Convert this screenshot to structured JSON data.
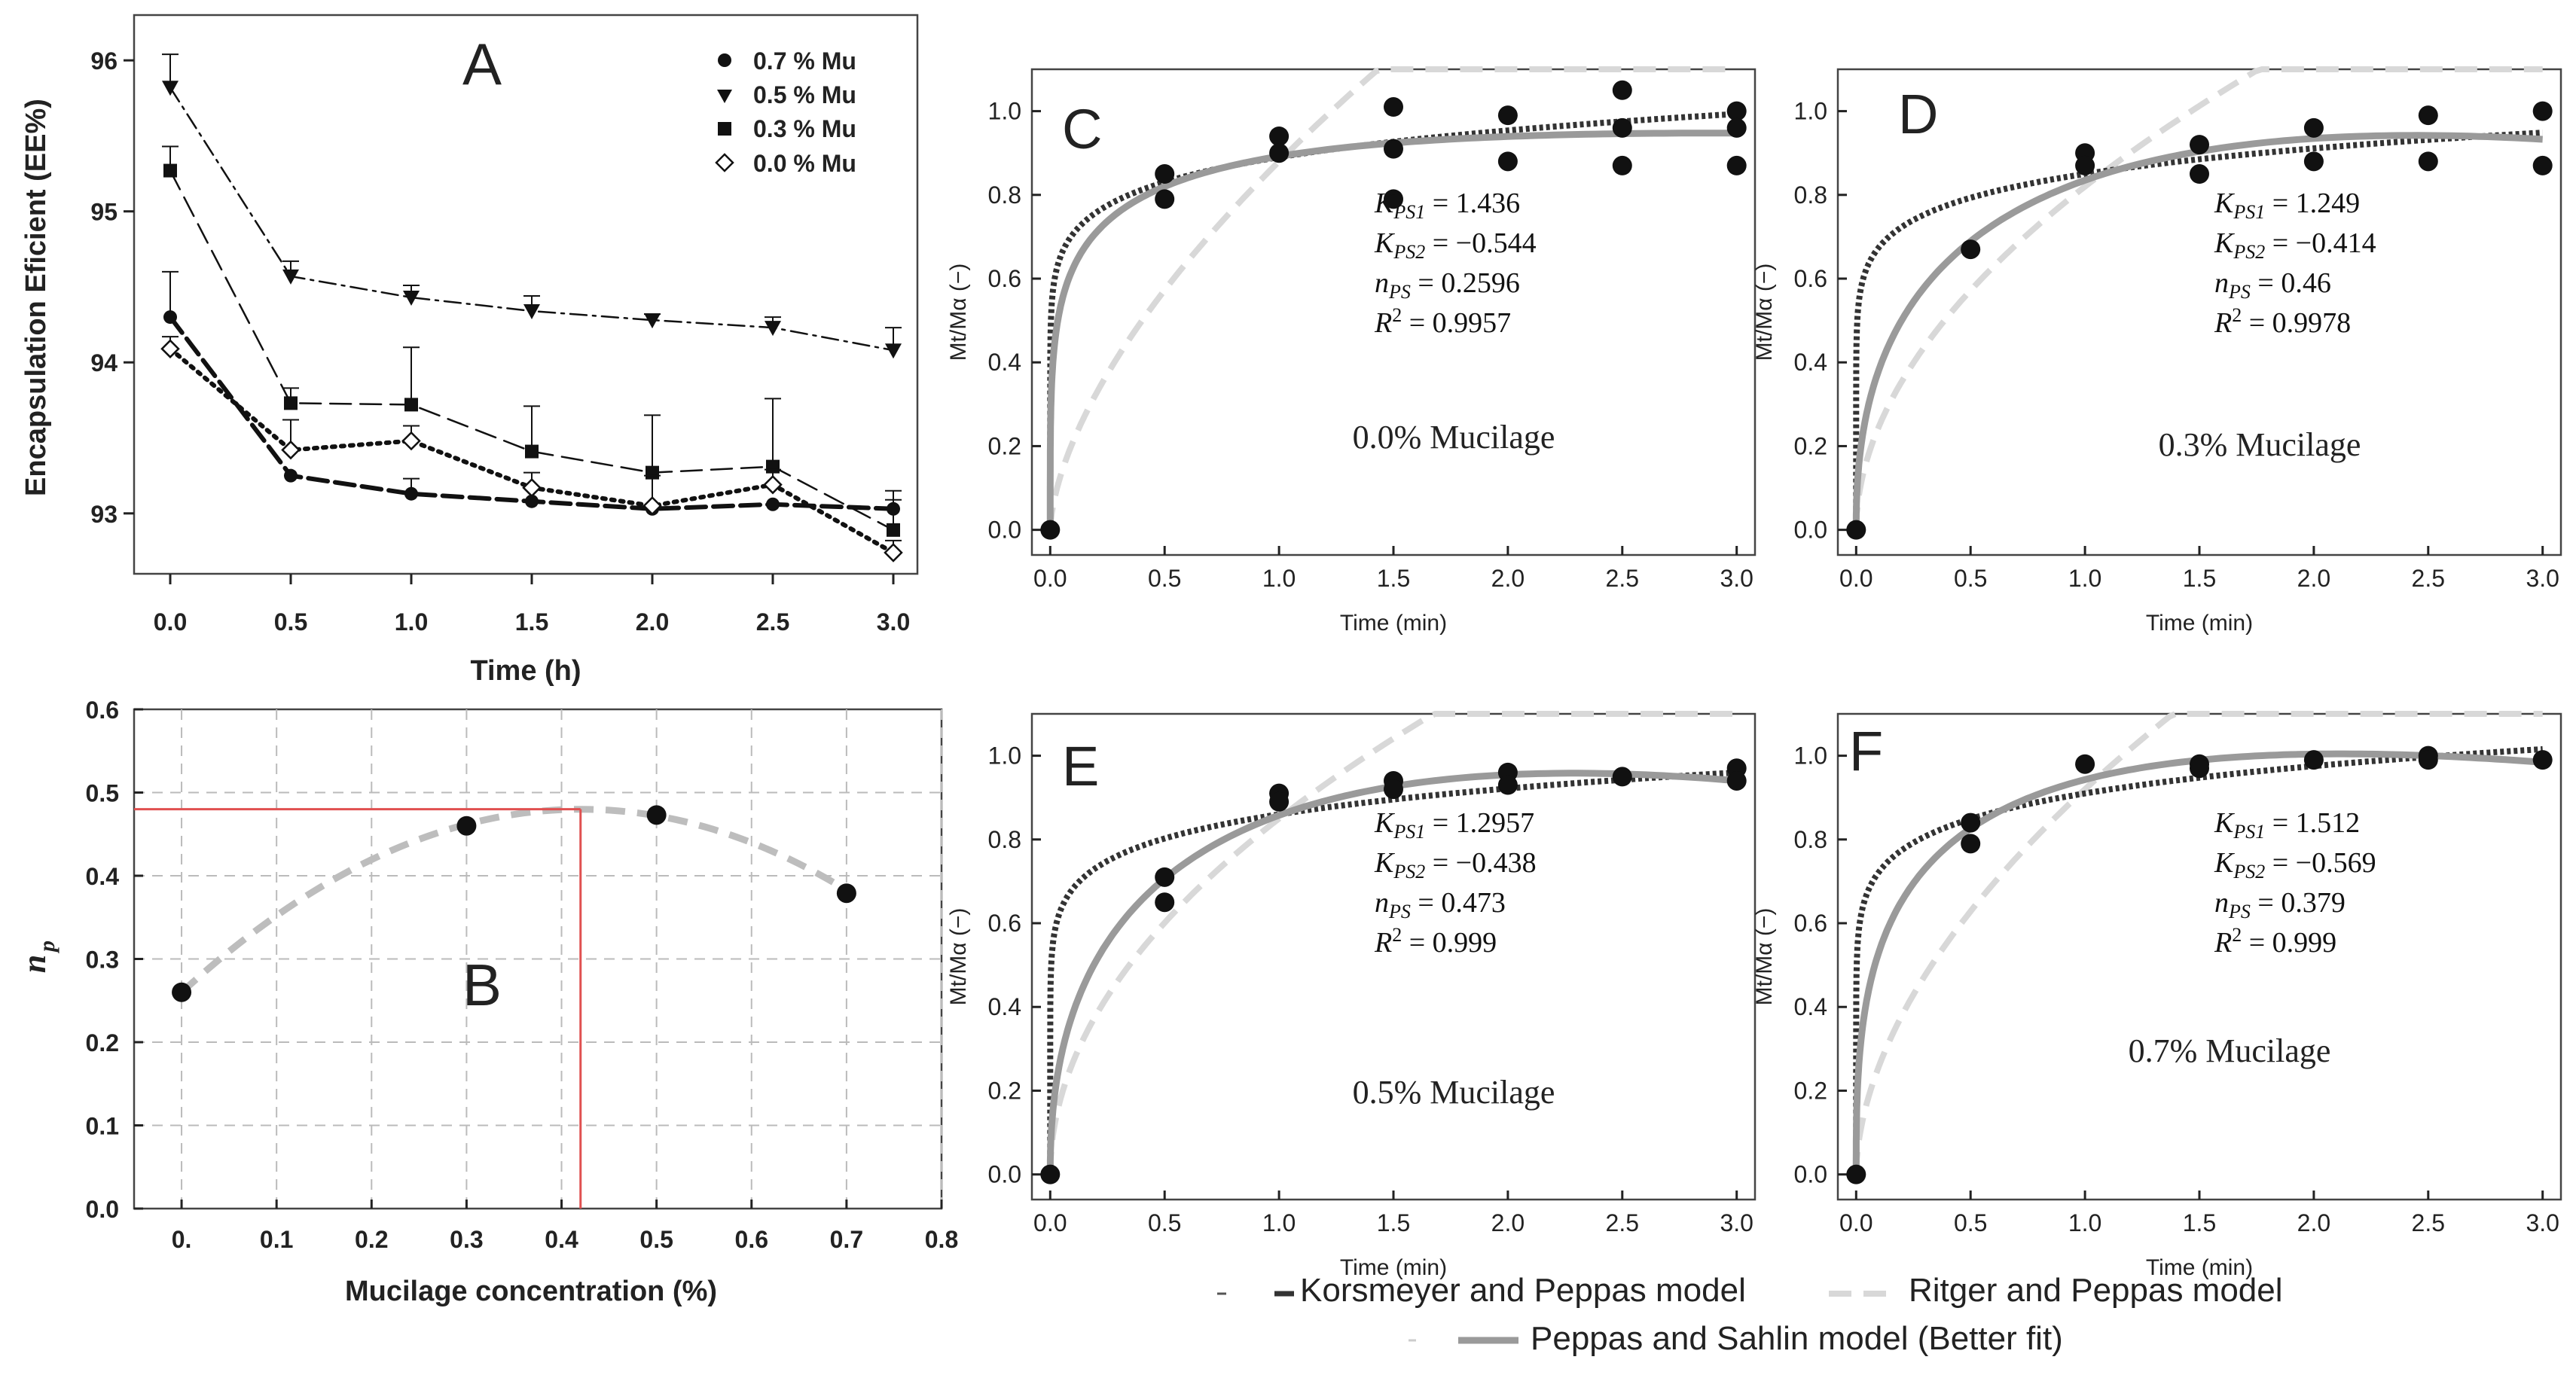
{
  "chart_data": [
    {
      "panel": "A",
      "type": "line",
      "panel_label": "A",
      "xlabel": "Time (h)",
      "ylabel": "Encapsulation Eficient (EE%)",
      "xlim": [
        -0.15,
        3.1
      ],
      "ylim": [
        92.6,
        96.3
      ],
      "xticks": [
        "0.0",
        "0.5",
        "1.0",
        "1.5",
        "2.0",
        "2.5",
        "3.0"
      ],
      "yticks": [
        "93",
        "94",
        "95",
        "96"
      ],
      "x": [
        0,
        0.5,
        1,
        1.5,
        2,
        2.5,
        3
      ],
      "series": [
        {
          "name": "0.7 % Mu",
          "marker": "circle",
          "dash": "long-dash",
          "values": [
            94.3,
            93.25,
            93.13,
            93.08,
            93.03,
            93.06,
            93.03
          ],
          "errors": [
            0.3,
            0.0,
            0.1,
            0.0,
            0.0,
            0.0,
            0.12
          ]
        },
        {
          "name": "0.5 % Mu",
          "marker": "triangle-down",
          "dash": "dash-dot",
          "values": [
            95.82,
            94.57,
            94.43,
            94.34,
            94.28,
            94.23,
            94.08
          ],
          "errors": [
            0.22,
            0.1,
            0.08,
            0.1,
            0.04,
            0.07,
            0.15
          ]
        },
        {
          "name": "0.3 % Mu",
          "marker": "square",
          "dash": "dash",
          "values": [
            95.27,
            93.73,
            93.72,
            93.41,
            93.27,
            93.31,
            92.89
          ],
          "errors": [
            0.16,
            0.1,
            0.38,
            0.3,
            0.38,
            0.45,
            0.2
          ]
        },
        {
          "name": "0.0 % Mu",
          "marker": "diamond-open",
          "dash": "dot",
          "values": [
            94.09,
            93.42,
            93.48,
            93.17,
            93.05,
            93.19,
            92.74
          ],
          "errors": [
            0.08,
            0.2,
            0.1,
            0.1,
            0.2,
            0.1,
            0.08
          ]
        }
      ]
    },
    {
      "panel": "B",
      "type": "scatter",
      "panel_label": "B",
      "xlabel": "Mucilage concentration (%)",
      "ylabel": "n",
      "ylabel_sub": "p",
      "xlim": [
        -0.05,
        0.8
      ],
      "ylim": [
        0.0,
        0.6
      ],
      "xticks": [
        "0.",
        "0.1",
        "0.2",
        "0.3",
        "0.4",
        "0.5",
        "0.6",
        "0.7",
        "0.8"
      ],
      "yticks": [
        "0.0",
        "0.1",
        "0.2",
        "0.3",
        "0.4",
        "0.5",
        "0.6"
      ],
      "points": {
        "x": [
          0.0,
          0.3,
          0.5,
          0.7
        ],
        "y": [
          0.26,
          0.46,
          0.473,
          0.379
        ]
      },
      "fit": {
        "type": "quadratic",
        "a": 0.2598,
        "b": 1.0469,
        "c": -1.2448
      },
      "optimum": {
        "x": 0.42,
        "y": 0.48
      }
    },
    {
      "panel": "C",
      "type": "scatter",
      "panel_label": "C",
      "annotation": "0.0% Mucilage",
      "params": {
        "K_PS1": "1.436",
        "K_PS2": "−0.544",
        "n_PS": "0.2596",
        "R2": "0.9957"
      },
      "points": {
        "x": [
          0,
          0.5,
          0.5,
          1,
          1,
          1.5,
          1.5,
          1.5,
          2,
          2,
          2.5,
          2.5,
          2.5,
          3,
          3,
          3
        ],
        "y": [
          0,
          0.85,
          0.79,
          0.94,
          0.9,
          1.01,
          0.79,
          0.91,
          0.99,
          0.88,
          1.05,
          0.96,
          0.87,
          1.0,
          0.96,
          0.87
        ]
      }
    },
    {
      "panel": "D",
      "type": "scatter",
      "panel_label": "D",
      "annotation": "0.3% Mucilage",
      "params": {
        "K_PS1": "1.249",
        "K_PS2": "−0.414",
        "n_PS": "0.46",
        "R2": "0.9978"
      },
      "points": {
        "x": [
          0,
          0.5,
          1,
          1,
          1.5,
          1.5,
          2,
          2,
          2.5,
          2.5,
          3,
          3
        ],
        "y": [
          0,
          0.67,
          0.9,
          0.87,
          0.92,
          0.85,
          0.96,
          0.88,
          0.99,
          0.88,
          1.0,
          0.87
        ]
      }
    },
    {
      "panel": "E",
      "type": "scatter",
      "panel_label": "E",
      "annotation": "0.5% Mucilage",
      "params": {
        "K_PS1": "1.2957",
        "K_PS2": "−0.438",
        "n_PS": "0.473",
        "R2": "0.999"
      },
      "points": {
        "x": [
          0,
          0.5,
          0.5,
          1,
          1,
          1.5,
          1.5,
          2,
          2,
          2.5,
          3,
          3
        ],
        "y": [
          0,
          0.71,
          0.65,
          0.91,
          0.89,
          0.94,
          0.92,
          0.96,
          0.93,
          0.95,
          0.97,
          0.94
        ]
      }
    },
    {
      "panel": "F",
      "type": "scatter",
      "panel_label": "F",
      "annotation": "0.7% Mucilage",
      "params": {
        "K_PS1": "1.512",
        "K_PS2": "−0.569",
        "n_PS": "0.379",
        "R2": "0.999"
      },
      "points": {
        "x": [
          0,
          0.5,
          0.5,
          1,
          1.5,
          1.5,
          2,
          2.5,
          2.5,
          3
        ],
        "y": [
          0,
          0.84,
          0.79,
          0.98,
          0.98,
          0.97,
          0.99,
          1.0,
          0.99,
          0.99
        ]
      }
    }
  ],
  "release_axes": {
    "xlabel": "Time (min)",
    "ylabel": "Mt/Mα (−)",
    "xticks": [
      "0.0",
      "0.5",
      "1.0",
      "1.5",
      "2.0",
      "2.5",
      "3.0"
    ],
    "yticks": [
      "0.0",
      "0.2",
      "0.4",
      "0.6",
      "0.8",
      "1.0"
    ],
    "xlim": [
      -0.08,
      3.08
    ],
    "ylim": [
      -0.06,
      1.1
    ]
  },
  "legend": {
    "korsmeyer": "Korsmeyer and Peppas model",
    "ritger": "Ritger and Peppas model",
    "sahlin": "Peppas and Sahlin model (Better fit)"
  },
  "colors": {
    "korsmeyer": "#333333",
    "ritger": "#d8d8d8",
    "sahlin": "#9a9a9a",
    "optimum": "#e05050",
    "fit_b": "#bdbdbd"
  }
}
